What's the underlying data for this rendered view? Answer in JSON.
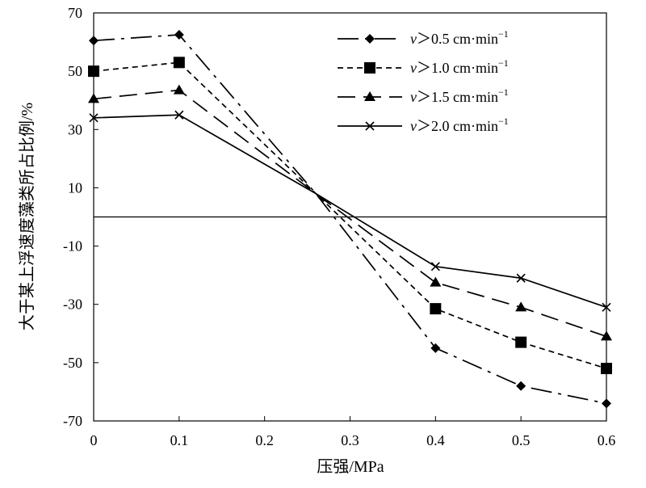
{
  "chart_data": {
    "type": "line",
    "xlabel": "压强/MPa",
    "ylabel": "大于某上浮速度藻类所占比例/%",
    "xlim": [
      0,
      0.6
    ],
    "ylim": [
      -70,
      70
    ],
    "x_ticks": [
      0,
      0.1,
      0.2,
      0.3,
      0.4,
      0.5,
      0.6
    ],
    "x_tick_labels": [
      "0",
      "0.1",
      "0.2",
      "0.3",
      "0.4",
      "0.5",
      "0.6"
    ],
    "y_ticks": [
      70,
      50,
      30,
      10,
      -10,
      -30,
      -50,
      -70
    ],
    "y_tick_labels": [
      "70",
      "50",
      "30",
      "10",
      "-10",
      "-30",
      "-50",
      "-70"
    ],
    "reference_line_y": 0,
    "grid": false,
    "legend_position": "top-right",
    "x": [
      0,
      0.1,
      0.26,
      0.4,
      0.5,
      0.6
    ],
    "series": [
      {
        "name": "v＞0.5 cm·min⁻¹",
        "name_parts": [
          "v",
          "＞0.5 cm·min",
          "−1"
        ],
        "marker": "diamond",
        "dash": "dashdot",
        "values": [
          60.5,
          62.5,
          8,
          -45,
          -58,
          -64
        ]
      },
      {
        "name": "v＞1.0 cm·min⁻¹",
        "name_parts": [
          "v",
          "＞1.0 cm·min",
          "−1"
        ],
        "marker": "square",
        "dash": "dotted",
        "values": [
          50,
          53,
          8,
          -31.5,
          -43,
          -52
        ]
      },
      {
        "name": "v＞1.5 cm·min⁻¹",
        "name_parts": [
          "v",
          "＞1.5 cm·min",
          "−1"
        ],
        "marker": "triangle",
        "dash": "longdash",
        "values": [
          40.5,
          43.5,
          8,
          -22.5,
          -31,
          -41
        ]
      },
      {
        "name": "v＞2.0 cm·min⁻¹",
        "name_parts": [
          "v",
          "＞2.0 cm·min",
          "−1"
        ],
        "marker": "x",
        "dash": "solid",
        "values": [
          34,
          35,
          8,
          -17,
          -21,
          -31
        ]
      }
    ]
  }
}
